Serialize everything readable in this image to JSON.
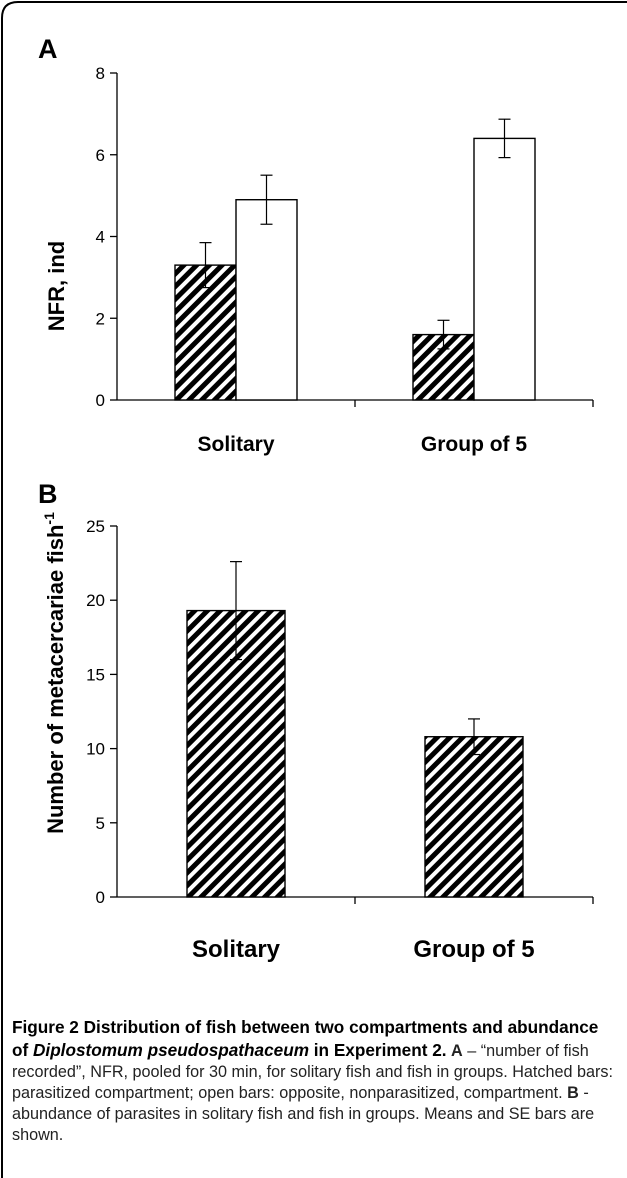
{
  "chart_data": [
    {
      "panel": "A",
      "type": "bar",
      "categories": [
        "Solitary",
        "Group of 5"
      ],
      "series": [
        {
          "pattern": "hatched",
          "values": [
            3.3,
            1.6
          ],
          "se": [
            0.55,
            0.35
          ]
        },
        {
          "pattern": "open",
          "values": [
            4.9,
            6.4
          ],
          "se": [
            0.6,
            0.47
          ]
        }
      ],
      "ylabel": "NFR, ind",
      "ylim": [
        0,
        8
      ],
      "yticks": [
        "0",
        "2",
        "4",
        "6",
        "8"
      ]
    },
    {
      "panel": "B",
      "type": "bar",
      "categories": [
        "Solitary",
        "Group of 5"
      ],
      "series": [
        {
          "pattern": "hatched",
          "values": [
            19.3,
            10.8
          ],
          "se": [
            3.3,
            1.2
          ]
        }
      ],
      "ylabel": "Number of metacercariae fish",
      "ylabel_superscript": "-1",
      "ylim": [
        0,
        25
      ],
      "yticks": [
        "0",
        "5",
        "10",
        "15",
        "20",
        "25"
      ]
    }
  ],
  "caption": {
    "figure_label": "Figure 2",
    "title_part1": " Distribution of fish between two compartments and abundance of ",
    "title_species": "Diplostomum pseudospathaceum",
    "title_part2": " in Experiment 2.",
    "panel_a_label": "A",
    "panel_a_text": " – “number of fish recorded”, NFR, pooled for 30 min, for solitary fish and fish in groups. Hatched bars: parasitized compartment; open bars: opposite, nonparasitized, compartment. ",
    "panel_b_label": "B",
    "panel_b_text": " - abundance of parasites in solitary fish and fish in groups. Means and SE bars are shown."
  },
  "colors": {
    "ink": "#000000",
    "background": "#ffffff",
    "caption_text": "#222222"
  }
}
